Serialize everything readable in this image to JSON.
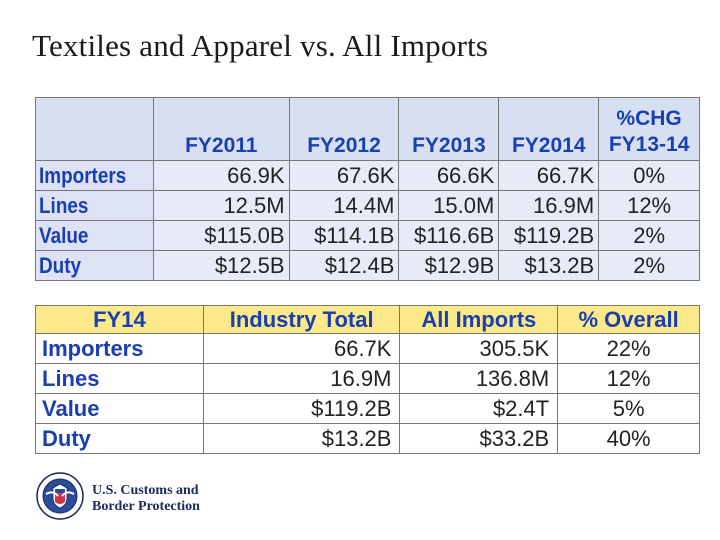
{
  "title": "Textiles and Apparel vs. All Imports",
  "table_top": {
    "headers": [
      "",
      "FY2011",
      "FY2012",
      "FY2013",
      "FY2014",
      "%CHG\nFY13-14"
    ],
    "header_pct_line1": "%CHG",
    "header_pct_line2": "FY13-14",
    "rows": [
      {
        "label": "Importers",
        "values": [
          "66.9K",
          "67.6K",
          "66.6K",
          "66.7K",
          "0%"
        ]
      },
      {
        "label": "Lines",
        "values": [
          "12.5M",
          "14.4M",
          "15.0M",
          "16.9M",
          "12%"
        ]
      },
      {
        "label": "Value",
        "values": [
          "$115.0B",
          "$114.1B",
          "$116.6B",
          "$119.2B",
          "2%"
        ]
      },
      {
        "label": "Duty",
        "values": [
          "$12.5B",
          "$12.4B",
          "$12.9B",
          "$13.2B",
          "2%"
        ]
      }
    ]
  },
  "table_bottom": {
    "headers": [
      "FY14",
      "Industry Total",
      "All Imports",
      "% Overall"
    ],
    "rows": [
      {
        "label": "Importers",
        "values": [
          "66.7K",
          "305.5K",
          "22%"
        ]
      },
      {
        "label": "Lines",
        "values": [
          "16.9M",
          "136.8M",
          "12%"
        ]
      },
      {
        "label": "Value",
        "values": [
          "$119.2B",
          "$2.4T",
          "5%"
        ]
      },
      {
        "label": "Duty",
        "values": [
          "$13.2B",
          "$33.2B",
          "40%"
        ]
      }
    ]
  },
  "logo": {
    "icon": "dhs-seal-icon",
    "line1": "U.S. Customs and",
    "line2": "Border Protection"
  },
  "colors": {
    "header_blue": "#1a3fb0",
    "top_table_bg": "#d7e0f3",
    "bottom_header_bg": "#fbe98a"
  }
}
